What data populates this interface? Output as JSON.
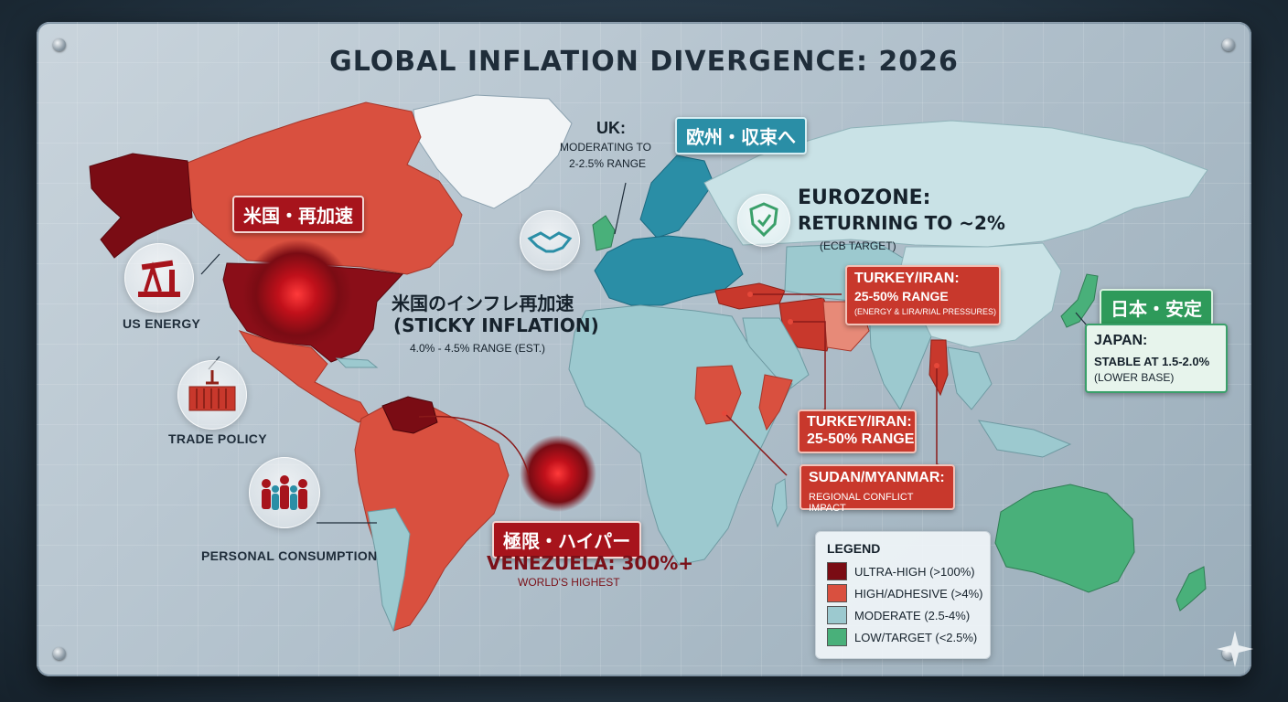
{
  "title": "GLOBAL INFLATION DIVERGENCE: 2026",
  "colors": {
    "ultra_high": "#7a0c14",
    "high": "#d9503f",
    "moderate": "#9cc9cf",
    "low": "#49b07a",
    "ocean": "#b8c6d0"
  },
  "usa": {
    "tag": "米国・再加速",
    "jp_title": "米国のインフレ再加速",
    "title": "(STICKY INFLATION)",
    "range": "4.0% - 4.5% RANGE (EST.)"
  },
  "drivers": [
    {
      "icon": "oil-pump-icon",
      "label": "US ENERGY"
    },
    {
      "icon": "shipping-container-icon",
      "label": "TRADE POLICY"
    },
    {
      "icon": "crowd-icon",
      "label": "PERSONAL CONSUMPTION"
    }
  ],
  "venezuela": {
    "tag": "極限・ハイパー",
    "title": "VENEZUELA: 300%+",
    "sub": "WORLD'S HIGHEST"
  },
  "uk": {
    "line1": "UK:",
    "line2": "MODERATING TO",
    "line3": "2-2.5% RANGE"
  },
  "eurozone": {
    "tag": "欧州・収束へ",
    "line1": "EUROZONE:",
    "line2": "RETURNING TO ~2%",
    "sub": "(ECB TARGET)"
  },
  "turkey_iran_box": {
    "title": "TURKEY/IRAN:",
    "range": "25-50% RANGE",
    "sub": "(ENERGY & LIRA/RIAL PRESSURES)"
  },
  "turkey_iran_box2": {
    "title": "TURKEY/IRAN:",
    "range": "25-50% RANGE"
  },
  "sudan_myanmar": {
    "title": "SUDAN/MYANMAR:",
    "sub": "REGIONAL CONFLICT IMPACT"
  },
  "japan": {
    "tag": "日本・安定",
    "title": "JAPAN:",
    "line2": "STABLE AT 1.5-2.0%",
    "sub": "(LOWER BASE)"
  },
  "legend": {
    "title": "LEGEND",
    "items": [
      {
        "label": "ULTRA-HIGH (>100%)",
        "color": "#7a0c14"
      },
      {
        "label": "HIGH/ADHESIVE (>4%)",
        "color": "#d9503f"
      },
      {
        "label": "MODERATE (2.5-4%)",
        "color": "#9cc9cf"
      },
      {
        "label": "LOW/TARGET (<2.5%)",
        "color": "#49b07a"
      }
    ]
  }
}
